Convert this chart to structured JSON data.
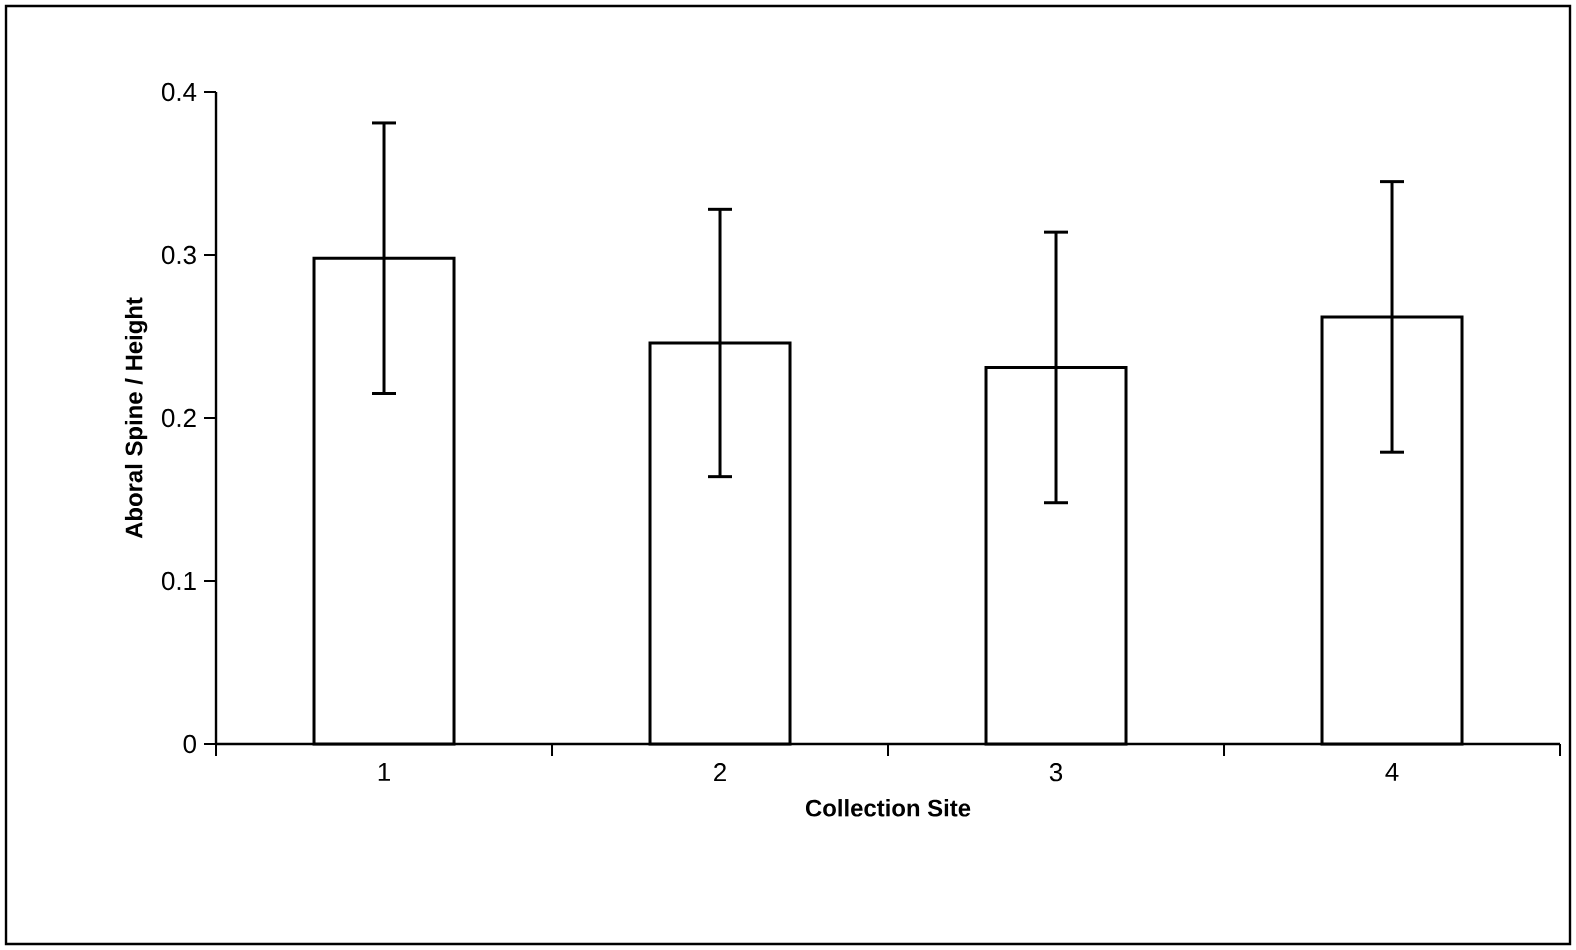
{
  "chart_data": {
    "type": "bar",
    "xlabel": "Collection Site",
    "ylabel": "Aboral Spine / Height",
    "categories": [
      "1",
      "2",
      "3",
      "4"
    ],
    "values": [
      0.298,
      0.246,
      0.231,
      0.262
    ],
    "errors": [
      0.083,
      0.082,
      0.083,
      0.083
    ],
    "color": "#ffffff",
    "ylim": [
      0,
      0.4
    ],
    "yticks": [
      0,
      0.1,
      0.2,
      0.3,
      0.4
    ],
    "grid": false
  }
}
